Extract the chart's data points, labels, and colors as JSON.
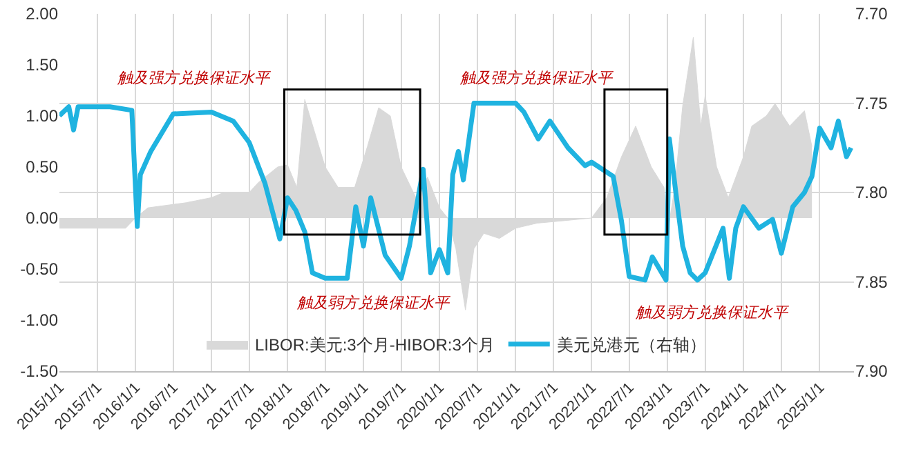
{
  "chart_data": {
    "type": "line",
    "xlim": [
      "2015-01-01",
      "2025-06-15"
    ],
    "xticks": [
      {
        "value": "2015-01-01",
        "label": "2015/1/1"
      },
      {
        "value": "2015-07-01",
        "label": "2015/7/1"
      },
      {
        "value": "2016-01-01",
        "label": "2016/1/1"
      },
      {
        "value": "2016-07-01",
        "label": "2016/7/1"
      },
      {
        "value": "2017-01-01",
        "label": "2017/1/1"
      },
      {
        "value": "2017-07-01",
        "label": "2017/7/1"
      },
      {
        "value": "2018-01-01",
        "label": "2018/1/1"
      },
      {
        "value": "2018-07-01",
        "label": "2018/7/1"
      },
      {
        "value": "2019-01-01",
        "label": "2019/1/1"
      },
      {
        "value": "2019-07-01",
        "label": "2019/7/1"
      },
      {
        "value": "2020-01-01",
        "label": "2020/1/1"
      },
      {
        "value": "2020-07-01",
        "label": "2020/7/1"
      },
      {
        "value": "2021-01-01",
        "label": "2021/1/1"
      },
      {
        "value": "2021-07-01",
        "label": "2021/7/1"
      },
      {
        "value": "2022-01-01",
        "label": "2022/1/1"
      },
      {
        "value": "2022-07-01",
        "label": "2022/7/1"
      },
      {
        "value": "2023-01-01",
        "label": "2023/1/1"
      },
      {
        "value": "2023-07-01",
        "label": "2023/7/1"
      },
      {
        "value": "2024-01-01",
        "label": "2024/1/1"
      },
      {
        "value": "2024-07-01",
        "label": "2024/7/1"
      },
      {
        "value": "2025-01-01",
        "label": "2025/1/1"
      }
    ],
    "ylim": [
      -1.5,
      2.0
    ],
    "yticks": [
      {
        "value": -1.5,
        "label": "-1.50"
      },
      {
        "value": -1.0,
        "label": "-1.00"
      },
      {
        "value": -0.5,
        "label": "-0.50"
      },
      {
        "value": 0,
        "label": "0.00"
      },
      {
        "value": 0.5,
        "label": "0.50"
      },
      {
        "value": 1.0,
        "label": "1.00"
      },
      {
        "value": 1.5,
        "label": "1.50"
      },
      {
        "value": 2.0,
        "label": "2.00"
      }
    ],
    "y2lim": [
      7.9,
      7.7
    ],
    "y2ticks": [
      {
        "value": 7.7,
        "label": "7.70"
      },
      {
        "value": 7.75,
        "label": "7.75"
      },
      {
        "value": 7.8,
        "label": "7.80"
      },
      {
        "value": 7.85,
        "label": "7.85"
      },
      {
        "value": 7.9,
        "label": "7.90"
      }
    ],
    "grid": true,
    "legend": "bottom",
    "series": [
      {
        "name": "LIBOR:美元:3个月-HIBOR:3个月",
        "type": "area",
        "color": "#d9d9d9",
        "x": [
          "2015-01-01",
          "2015-06-01",
          "2015-11-15",
          "2016-01-01",
          "2016-03-01",
          "2016-09-01",
          "2017-01-01",
          "2017-03-01",
          "2017-07-01",
          "2017-08-15",
          "2017-11-15",
          "2018-01-01",
          "2018-02-15",
          "2018-03-25",
          "2018-07-01",
          "2018-09-01",
          "2018-11-20",
          "2019-01-20",
          "2019-03-15",
          "2019-05-10",
          "2019-07-01",
          "2019-09-10",
          "2019-11-05",
          "2020-01-01",
          "2020-02-10",
          "2020-03-20",
          "2020-05-05",
          "2020-06-15",
          "2020-08-01",
          "2020-10-15",
          "2021-01-01",
          "2021-04-15",
          "2021-08-01",
          "2022-01-01",
          "2022-03-15",
          "2022-05-25",
          "2022-08-01",
          "2022-10-15",
          "2022-12-15",
          "2023-01-05",
          "2023-02-05",
          "2023-03-15",
          "2023-05-05",
          "2023-06-10",
          "2023-07-01",
          "2023-08-25",
          "2023-10-20",
          "2024-01-01",
          "2024-02-10",
          "2024-04-20",
          "2024-06-01",
          "2024-08-10",
          "2024-10-20",
          "2024-11-25"
        ],
        "values": [
          -0.1,
          -0.1,
          -0.1,
          0.0,
          0.1,
          0.15,
          0.2,
          0.25,
          0.25,
          0.35,
          0.5,
          0.52,
          0.3,
          1.16,
          0.5,
          0.3,
          0.3,
          0.7,
          1.08,
          1.0,
          0.5,
          0.2,
          0.4,
          0.1,
          0.0,
          -0.3,
          -0.9,
          -0.3,
          -0.15,
          -0.2,
          -0.1,
          -0.05,
          -0.03,
          0.0,
          0.2,
          0.6,
          0.9,
          0.5,
          0.3,
          -0.1,
          0.3,
          1.1,
          1.77,
          0.9,
          1.2,
          0.5,
          0.2,
          0.6,
          0.9,
          1.0,
          1.12,
          0.9,
          1.05,
          0.7
        ]
      },
      {
        "name": "美元兑港元（右轴）",
        "axis": "y2",
        "color": "#1fb3e0",
        "x": [
          "2015-01-01",
          "2015-02-15",
          "2015-03-10",
          "2015-04-01",
          "2015-09-01",
          "2015-12-15",
          "2016-01-10",
          "2016-01-25",
          "2016-03-15",
          "2016-07-01",
          "2017-01-01",
          "2017-04-15",
          "2017-07-01",
          "2017-09-15",
          "2017-11-25",
          "2018-01-01",
          "2018-02-10",
          "2018-03-25",
          "2018-05-01",
          "2018-07-01",
          "2018-10-15",
          "2018-11-25",
          "2019-01-01",
          "2019-02-05",
          "2019-04-15",
          "2019-07-01",
          "2019-08-10",
          "2019-10-15",
          "2019-11-20",
          "2020-01-01",
          "2020-02-10",
          "2020-03-05",
          "2020-04-01",
          "2020-04-25",
          "2020-06-15",
          "2020-09-01",
          "2021-01-01",
          "2021-02-10",
          "2021-04-20",
          "2021-06-15",
          "2021-09-10",
          "2021-12-01",
          "2022-01-01",
          "2022-04-15",
          "2022-05-25",
          "2022-07-01",
          "2022-09-15",
          "2022-10-20",
          "2022-12-25",
          "2023-01-10",
          "2023-02-10",
          "2023-03-15",
          "2023-04-20",
          "2023-05-25",
          "2023-07-01",
          "2023-08-25",
          "2023-09-25",
          "2023-10-25",
          "2023-11-25",
          "2024-01-01",
          "2024-03-15",
          "2024-05-20",
          "2024-07-01",
          "2024-08-25",
          "2024-10-20",
          "2024-11-25",
          "2025-01-01",
          "2025-02-25",
          "2025-04-01",
          "2025-05-10",
          "2025-06-01"
        ],
        "values": [
          7.757,
          7.752,
          7.765,
          7.752,
          7.752,
          7.754,
          7.819,
          7.79,
          7.777,
          7.756,
          7.755,
          7.76,
          7.772,
          7.795,
          7.826,
          7.803,
          7.81,
          7.822,
          7.845,
          7.848,
          7.848,
          7.808,
          7.83,
          7.803,
          7.835,
          7.848,
          7.83,
          7.787,
          7.845,
          7.832,
          7.845,
          7.79,
          7.777,
          7.793,
          7.75,
          7.75,
          7.75,
          7.755,
          7.77,
          7.76,
          7.775,
          7.785,
          7.783,
          7.791,
          7.816,
          7.847,
          7.849,
          7.836,
          7.849,
          7.77,
          7.8,
          7.83,
          7.845,
          7.849,
          7.845,
          7.829,
          7.82,
          7.848,
          7.82,
          7.808,
          7.82,
          7.815,
          7.834,
          7.808,
          7.8,
          7.791,
          7.764,
          7.775,
          7.76,
          7.78,
          7.775
        ]
      }
    ],
    "annotations": [
      "触及强方兑换保证水平",
      "触及强方兑换保证水平",
      "触及弱方兑换保证水平",
      "触及弱方兑换保证水平"
    ]
  }
}
